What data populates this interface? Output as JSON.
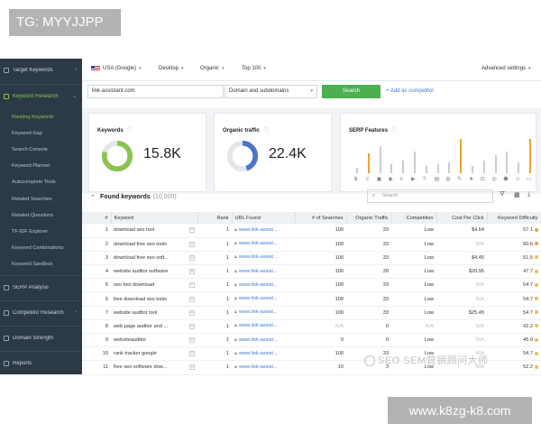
{
  "overlay": {
    "top_label": "TG: MYYJJPP",
    "watermark": "SEO SEM营销顾问大师",
    "site_label": "www.k8zg-k8.com"
  },
  "sidebar": {
    "items": [
      {
        "label": "Target Keywords"
      },
      {
        "label": "Keyword Research"
      },
      {
        "label": "SERP Analysis"
      },
      {
        "label": "Competitor Research"
      },
      {
        "label": "Domain Strength"
      },
      {
        "label": "Reports"
      }
    ],
    "subitems": [
      "Ranking Keywords",
      "Keyword Gap",
      "Search Console",
      "Keyword Planner",
      "Autocomplete Tools",
      "Related Searches",
      "Related Questions",
      "TF-IDF Explorer",
      "Keyword Combinations",
      "Keyword Sandbox"
    ]
  },
  "topbar": {
    "country": "USA (Google)",
    "device": "Desktop",
    "type": "Organic",
    "top": "Top 100",
    "advanced": "Advanced settings"
  },
  "search": {
    "value": "link-assistant.com",
    "scope": "Domain and subdomains",
    "button": "Search",
    "add_competitor": "+ Add as competitor"
  },
  "cards": {
    "keywords": {
      "title": "Keywords",
      "value": "15.8K"
    },
    "traffic": {
      "title": "Organic traffic",
      "value": "22.4K"
    },
    "serp": {
      "title": "SERP Features"
    }
  },
  "table": {
    "title": "Found keywords",
    "count": "(10,000)",
    "search_placeholder": "Search",
    "headers": [
      "#",
      "Keyword",
      "Rank",
      "URL Found",
      "# of Searches",
      "Organic Traffic",
      "Competition",
      "Cost Per Click",
      "Keyword Difficulty"
    ],
    "rows": [
      {
        "n": "1",
        "kw": "download seo tool",
        "rank": "1",
        "url": "www.link-assist...",
        "searches": "100",
        "traffic": "33",
        "comp": "Low",
        "cpc": "$4.64",
        "kd": "57.1"
      },
      {
        "n": "2",
        "kw": "download free seo tools",
        "rank": "1",
        "url": "www.link-assist...",
        "searches": "100",
        "traffic": "33",
        "comp": "Low",
        "cpc": "N/A",
        "kd": "60.6"
      },
      {
        "n": "3",
        "kw": "download free seo soft...",
        "rank": "1",
        "url": "www.link-assist...",
        "searches": "100",
        "traffic": "33",
        "comp": "Low",
        "cpc": "$4.45",
        "kd": "51.5"
      },
      {
        "n": "4",
        "kw": "website auditor software",
        "rank": "1",
        "url": "www.link-assist...",
        "searches": "100",
        "traffic": "28",
        "comp": "Low",
        "cpc": "$20.95",
        "kd": "47.7"
      },
      {
        "n": "5",
        "kw": "seo tool download",
        "rank": "1",
        "url": "www.link-assist...",
        "searches": "100",
        "traffic": "33",
        "comp": "Low",
        "cpc": "N/A",
        "kd": "54.7"
      },
      {
        "n": "6",
        "kw": "free download seo tools",
        "rank": "1",
        "url": "www.link-assist...",
        "searches": "100",
        "traffic": "33",
        "comp": "Low",
        "cpc": "N/A",
        "kd": "54.7"
      },
      {
        "n": "7",
        "kw": "website auditor tool",
        "rank": "1",
        "url": "www.link-assist...",
        "searches": "100",
        "traffic": "33",
        "comp": "Low",
        "cpc": "$25.45",
        "kd": "54.7"
      },
      {
        "n": "8",
        "kw": "web page auditor and ...",
        "rank": "1",
        "url": "www.link-assist...",
        "searches": "N/A",
        "traffic": "0",
        "comp": "N/A",
        "cpc": "N/A",
        "kd": "42.2"
      },
      {
        "n": "9",
        "kw": "websiteauditor",
        "rank": "1",
        "url": "www.link-assist...",
        "searches": "0",
        "traffic": "0",
        "comp": "Low",
        "cpc": "N/A",
        "kd": "45.0"
      },
      {
        "n": "10",
        "kw": "rank tracker google",
        "rank": "1",
        "url": "www.link-assist...",
        "searches": "100",
        "traffic": "33",
        "comp": "Low",
        "cpc": "N/A",
        "kd": "54.7"
      },
      {
        "n": "11",
        "kw": "free seo software dow...",
        "rank": "1",
        "url": "www.link-assist...",
        "searches": "10",
        "traffic": "3",
        "comp": "Low",
        "cpc": "N/A",
        "kd": "52.2"
      }
    ]
  },
  "serp_features": {
    "levels": [
      0.15,
      0.55,
      0.75,
      0.25,
      0.35,
      0.6,
      0.2,
      0.25,
      0.3,
      0.95,
      0.2,
      0.35,
      0.5,
      0.6,
      0.3,
      0.95
    ],
    "icons": [
      "crown-icon",
      "star-badge-icon",
      "image-icon",
      "map-pin-icon",
      "list-icon",
      "video-icon",
      "question-icon",
      "news-icon",
      "globe-icon",
      "tweet-icon",
      "star-icon",
      "bookmark-icon",
      "site-links-icon",
      "knowledge-icon",
      "people-icon",
      "carousel-icon"
    ],
    "highlight": [
      1,
      9,
      15
    ]
  },
  "colors": {
    "accent_green": "#8cc24f",
    "traffic_blue": "#4e74c9",
    "sidebar_bg": "#2b3a46",
    "search_button": "#4caf50",
    "serp_bar": "#f0a030"
  },
  "donuts": {
    "keywords_fill": 0.8,
    "traffic_fill": 0.45
  }
}
